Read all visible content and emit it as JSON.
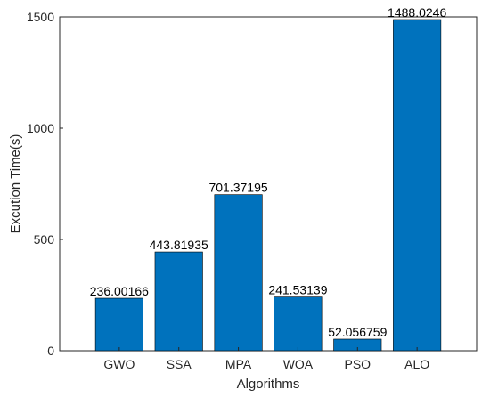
{
  "chart_data": {
    "type": "bar",
    "title": "",
    "xlabel": "Algorithms",
    "ylabel": "Excution Time(s)",
    "categories": [
      "GWO",
      "SSA",
      "MPA",
      "WOA",
      "PSO",
      "ALO"
    ],
    "values": [
      236.00166,
      443.81935,
      701.37195,
      241.53139,
      52.056759,
      1488.0246
    ],
    "value_labels": [
      "236.00166",
      "443.81935",
      "701.37195",
      "241.53139",
      "52.056759",
      "1488.0246"
    ],
    "ylim": [
      0,
      1500
    ],
    "yticks": [
      0,
      500,
      1000,
      1500
    ],
    "ytick_labels": [
      "0",
      "500",
      "1000",
      "1500"
    ],
    "grid": false,
    "bar_color": "#0072BD"
  }
}
